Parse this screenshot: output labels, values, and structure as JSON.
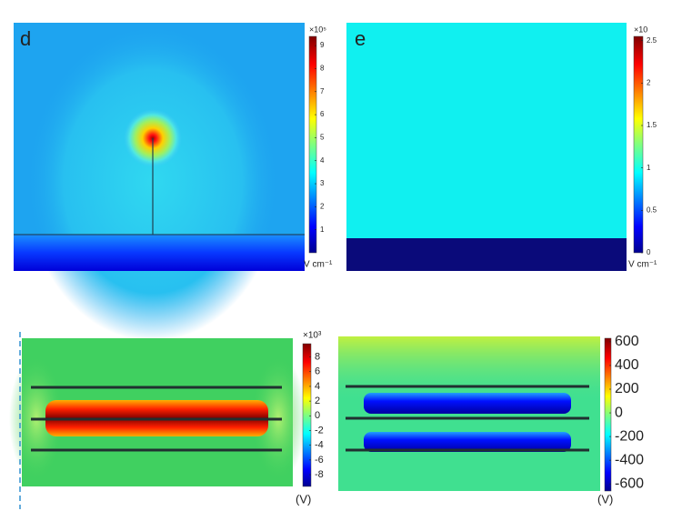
{
  "panels": [
    {
      "label": "d",
      "colorbar": {
        "exponent": "×10⁵",
        "unit": "V cm⁻¹",
        "range": [
          0,
          9.4
        ],
        "ticks": [
          1,
          2,
          3,
          4,
          5,
          6,
          7,
          8,
          9
        ]
      }
    },
    {
      "label": "e",
      "colorbar": {
        "exponent": "×10",
        "unit": "V cm⁻¹",
        "range": [
          0,
          2.55
        ],
        "ticks": [
          0,
          0.5,
          1,
          1.5,
          2,
          2.5
        ]
      }
    },
    {
      "colorbar": {
        "exponent": "×10³",
        "unit": "(V)",
        "range": [
          -9.6,
          9.8
        ],
        "ticks": [
          8,
          6,
          4,
          2,
          0,
          -2,
          -4,
          -6,
          -8
        ]
      }
    },
    {
      "colorbar": {
        "unit": "(V)",
        "range": [
          -660,
          630
        ],
        "ticks": [
          600,
          400,
          200,
          0,
          -200,
          -400,
          -600
        ]
      }
    }
  ]
}
